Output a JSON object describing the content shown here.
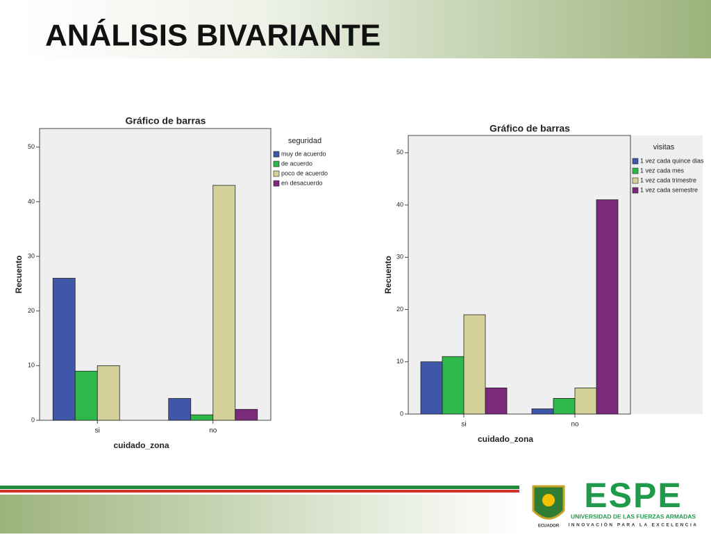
{
  "title": "ANÁLISIS BIVARIANTE",
  "chart_data": [
    {
      "type": "bar",
      "title": "Gráfico de barras",
      "legend_title": "seguridad",
      "x_label": "cuidado_zona",
      "y_label": "Recuento",
      "categories": [
        "si",
        "no"
      ],
      "series": [
        {
          "name": "muy de acuerdo",
          "color": "#3f57a8",
          "values": [
            26,
            4
          ]
        },
        {
          "name": "de acuerdo",
          "color": "#2eb84a",
          "values": [
            9,
            1
          ]
        },
        {
          "name": "poco de acuerdo",
          "color": "#d4d09a",
          "values": [
            10,
            43
          ]
        },
        {
          "name": "en desacuerdo",
          "color": "#7b2a7b",
          "values": [
            null,
            2
          ]
        }
      ],
      "ylim": [
        0,
        53.4
      ],
      "yticks": [
        0,
        10,
        20,
        30,
        40,
        50
      ],
      "legend": "upper-right"
    },
    {
      "type": "bar",
      "title": "Gráfico de barras",
      "legend_title": "visitas",
      "x_label": "cuidado_zona",
      "y_label": "Recuento",
      "categories": [
        "si",
        "no"
      ],
      "series": [
        {
          "name": "1 vez cada quince dias",
          "color": "#3f57a8",
          "values": [
            10,
            1
          ]
        },
        {
          "name": "1 vez cada mes",
          "color": "#2eb84a",
          "values": [
            11,
            3
          ]
        },
        {
          "name": "1 vez cada trimestre",
          "color": "#d4d09a",
          "values": [
            19,
            5
          ]
        },
        {
          "name": "1 vez cada semestre",
          "color": "#7b2a7b",
          "values": [
            5,
            41
          ]
        }
      ],
      "ylim": [
        0,
        53.3
      ],
      "yticks": [
        0,
        10,
        20,
        30,
        40,
        50
      ],
      "legend": "outside-right"
    }
  ],
  "footer": {
    "shield_text": "ECUADOR",
    "logo": "ESPE",
    "university": "UNIVERSIDAD DE LAS FUERZAS ARMADAS",
    "tagline": "INNOVACIÓN PARA LA EXCELENCIA"
  }
}
